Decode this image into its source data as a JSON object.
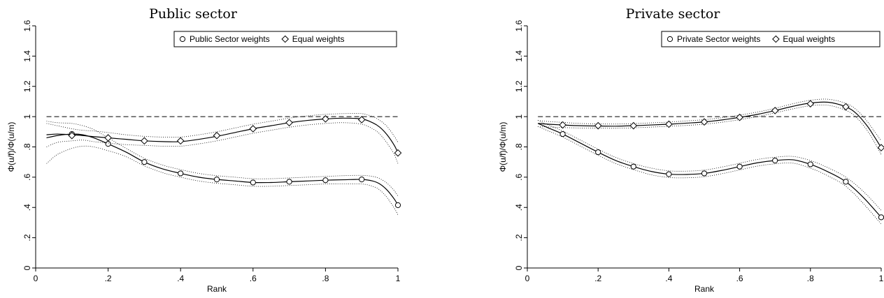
{
  "chart_data": [
    {
      "type": "line",
      "title": "Public sector",
      "xlabel": "Rank",
      "ylabel": "Φ(u/f)/Φ(u/m)",
      "xlim": [
        0,
        1
      ],
      "ylim": [
        0,
        1.6
      ],
      "xticks": [
        0,
        0.2,
        0.4,
        0.6,
        0.8,
        1
      ],
      "xtick_labels": [
        "0",
        ".2",
        ".4",
        ".6",
        ".8",
        "1"
      ],
      "yticks": [
        0,
        0.2,
        0.4,
        0.6,
        0.8,
        1,
        1.2,
        1.4,
        1.6
      ],
      "ytick_labels": [
        "0",
        ".2",
        ".4",
        ".6",
        ".8",
        "1",
        "1.2",
        "1.4",
        "1.6"
      ],
      "reference_line": 1.0,
      "legend_position": "top-right",
      "series": [
        {
          "name": "Public Sector weights",
          "marker": "circle",
          "marker_x": [
            0.1,
            0.2,
            0.3,
            0.4,
            0.5,
            0.6,
            0.7,
            0.8,
            0.9,
            1.0
          ],
          "marker_y": [
            0.885,
            0.82,
            0.7,
            0.625,
            0.585,
            0.565,
            0.57,
            0.58,
            0.585,
            0.415
          ],
          "curve_x": [
            0.03,
            0.06,
            0.1,
            0.13,
            0.16,
            0.2,
            0.25,
            0.3,
            0.35,
            0.4,
            0.45,
            0.5,
            0.55,
            0.6,
            0.65,
            0.7,
            0.75,
            0.8,
            0.85,
            0.9,
            0.93,
            0.95,
            0.97,
            0.99,
            1.0
          ],
          "curve_y": [
            0.86,
            0.875,
            0.885,
            0.88,
            0.86,
            0.82,
            0.765,
            0.7,
            0.655,
            0.625,
            0.6,
            0.585,
            0.575,
            0.565,
            0.565,
            0.57,
            0.575,
            0.58,
            0.583,
            0.585,
            0.575,
            0.555,
            0.515,
            0.455,
            0.415
          ],
          "ci_upper": [
            0.97,
            0.96,
            0.955,
            0.94,
            0.915,
            0.86,
            0.79,
            0.725,
            0.68,
            0.65,
            0.625,
            0.61,
            0.6,
            0.59,
            0.59,
            0.595,
            0.6,
            0.605,
            0.61,
            0.612,
            0.605,
            0.59,
            0.56,
            0.51,
            0.475
          ],
          "ci_lower": [
            0.69,
            0.75,
            0.79,
            0.805,
            0.8,
            0.775,
            0.735,
            0.675,
            0.63,
            0.6,
            0.575,
            0.56,
            0.55,
            0.54,
            0.54,
            0.545,
            0.55,
            0.555,
            0.555,
            0.555,
            0.54,
            0.515,
            0.465,
            0.395,
            0.35
          ]
        },
        {
          "name": "Equal weights",
          "marker": "diamond",
          "marker_x": [
            0.1,
            0.2,
            0.3,
            0.4,
            0.5,
            0.6,
            0.7,
            0.8,
            0.9,
            1.0
          ],
          "marker_y": [
            0.875,
            0.86,
            0.84,
            0.84,
            0.875,
            0.92,
            0.96,
            0.985,
            0.98,
            0.76
          ],
          "curve_x": [
            0.03,
            0.06,
            0.1,
            0.13,
            0.16,
            0.2,
            0.25,
            0.3,
            0.35,
            0.4,
            0.45,
            0.5,
            0.55,
            0.6,
            0.65,
            0.7,
            0.75,
            0.8,
            0.85,
            0.9,
            0.93,
            0.95,
            0.97,
            0.99,
            1.0
          ],
          "curve_y": [
            0.88,
            0.885,
            0.88,
            0.875,
            0.868,
            0.86,
            0.85,
            0.84,
            0.835,
            0.835,
            0.85,
            0.87,
            0.895,
            0.92,
            0.94,
            0.96,
            0.975,
            0.985,
            0.99,
            0.985,
            0.96,
            0.93,
            0.88,
            0.81,
            0.76
          ],
          "ci_upper": [
            0.955,
            0.94,
            0.92,
            0.91,
            0.905,
            0.895,
            0.88,
            0.87,
            0.865,
            0.865,
            0.88,
            0.9,
            0.925,
            0.95,
            0.97,
            0.99,
            1.005,
            1.015,
            1.02,
            1.02,
            1.0,
            0.975,
            0.935,
            0.87,
            0.83
          ],
          "ci_lower": [
            0.8,
            0.83,
            0.84,
            0.845,
            0.835,
            0.825,
            0.815,
            0.81,
            0.805,
            0.805,
            0.82,
            0.84,
            0.865,
            0.89,
            0.91,
            0.93,
            0.945,
            0.955,
            0.96,
            0.95,
            0.92,
            0.885,
            0.825,
            0.75,
            0.69
          ]
        }
      ]
    },
    {
      "type": "line",
      "title": "Private sector",
      "xlabel": "Rank",
      "ylabel": "Φ(u/f)/Φ(u/m)",
      "xlim": [
        0,
        1
      ],
      "ylim": [
        0,
        1.6
      ],
      "xticks": [
        0,
        0.2,
        0.4,
        0.6,
        0.8,
        1
      ],
      "xtick_labels": [
        "0",
        ".2",
        ".4",
        ".6",
        ".8",
        "1"
      ],
      "yticks": [
        0,
        0.2,
        0.4,
        0.6,
        0.8,
        1,
        1.2,
        1.4,
        1.6
      ],
      "ytick_labels": [
        "0",
        ".2",
        ".4",
        ".6",
        ".8",
        "1",
        "1.2",
        "1.4",
        "1.6"
      ],
      "reference_line": 1.0,
      "legend_position": "top-right",
      "series": [
        {
          "name": "Private Sector weights",
          "marker": "circle",
          "marker_x": [
            0.1,
            0.2,
            0.3,
            0.4,
            0.5,
            0.6,
            0.7,
            0.8,
            0.9,
            1.0
          ],
          "marker_y": [
            0.885,
            0.765,
            0.67,
            0.62,
            0.625,
            0.67,
            0.71,
            0.685,
            0.57,
            0.335
          ],
          "curve_x": [
            0.03,
            0.06,
            0.1,
            0.15,
            0.2,
            0.25,
            0.3,
            0.35,
            0.4,
            0.45,
            0.5,
            0.55,
            0.6,
            0.65,
            0.7,
            0.75,
            0.8,
            0.85,
            0.9,
            0.95,
            1.0
          ],
          "curve_y": [
            0.955,
            0.925,
            0.885,
            0.825,
            0.765,
            0.71,
            0.67,
            0.638,
            0.62,
            0.618,
            0.625,
            0.645,
            0.67,
            0.695,
            0.71,
            0.715,
            0.685,
            0.635,
            0.57,
            0.465,
            0.335
          ],
          "ci_upper": [
            0.975,
            0.945,
            0.905,
            0.845,
            0.785,
            0.73,
            0.69,
            0.66,
            0.642,
            0.64,
            0.647,
            0.667,
            0.692,
            0.717,
            0.732,
            0.737,
            0.71,
            0.662,
            0.6,
            0.505,
            0.38
          ],
          "ci_lower": [
            0.935,
            0.905,
            0.865,
            0.805,
            0.745,
            0.69,
            0.65,
            0.616,
            0.598,
            0.596,
            0.603,
            0.623,
            0.648,
            0.673,
            0.688,
            0.693,
            0.66,
            0.608,
            0.54,
            0.425,
            0.29
          ]
        },
        {
          "name": "Equal weights",
          "marker": "diamond",
          "marker_x": [
            0.1,
            0.2,
            0.3,
            0.4,
            0.5,
            0.6,
            0.7,
            0.8,
            0.9,
            1.0
          ],
          "marker_y": [
            0.945,
            0.94,
            0.94,
            0.95,
            0.965,
            0.995,
            1.04,
            1.085,
            1.065,
            0.795
          ],
          "curve_x": [
            0.03,
            0.06,
            0.1,
            0.15,
            0.2,
            0.25,
            0.3,
            0.35,
            0.4,
            0.45,
            0.5,
            0.55,
            0.6,
            0.65,
            0.7,
            0.75,
            0.8,
            0.85,
            0.9,
            0.93,
            0.96,
            0.98,
            1.0
          ],
          "curve_y": [
            0.955,
            0.95,
            0.945,
            0.94,
            0.938,
            0.937,
            0.94,
            0.945,
            0.95,
            0.957,
            0.965,
            0.978,
            0.995,
            1.015,
            1.04,
            1.068,
            1.09,
            1.095,
            1.065,
            1.02,
            0.94,
            0.87,
            0.795
          ],
          "ci_upper": [
            0.975,
            0.968,
            0.962,
            0.955,
            0.952,
            0.951,
            0.954,
            0.959,
            0.964,
            0.972,
            0.98,
            0.993,
            1.01,
            1.03,
            1.055,
            1.085,
            1.108,
            1.115,
            1.088,
            1.045,
            0.97,
            0.905,
            0.84
          ],
          "ci_lower": [
            0.935,
            0.932,
            0.928,
            0.925,
            0.924,
            0.923,
            0.926,
            0.931,
            0.936,
            0.942,
            0.95,
            0.963,
            0.98,
            1.0,
            1.025,
            1.051,
            1.072,
            1.075,
            1.042,
            0.995,
            0.91,
            0.835,
            0.75
          ]
        }
      ]
    }
  ]
}
